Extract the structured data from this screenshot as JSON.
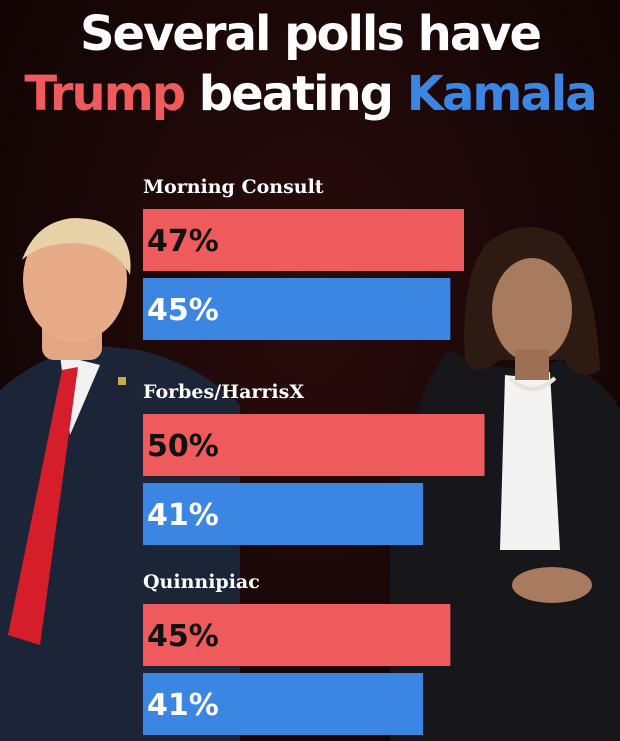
{
  "headline": {
    "line1": "Several polls have",
    "line2_part1": "Trump",
    "line2_part2": "beating",
    "line2_part3": "Kamala"
  },
  "colors": {
    "trump": "#ef5a5c",
    "kamala": "#3b86e3",
    "background": "#1a0808",
    "label_on_trump": "#111111",
    "label_on_kamala": "#ffffff"
  },
  "chart_data": {
    "type": "bar",
    "orientation": "horizontal",
    "grid": false,
    "categories": [
      "Morning Consult",
      "Forbes/HarrisX",
      "Quinnipiac"
    ],
    "series": [
      {
        "values": [
          47,
          50,
          45
        ],
        "labels": [
          "47%",
          "50%",
          "45%"
        ],
        "color": "#ef5a5c"
      },
      {
        "values": [
          45,
          41,
          41
        ],
        "labels": [
          "45%",
          "41%",
          "41%"
        ],
        "color": "#3b86e3"
      }
    ]
  }
}
